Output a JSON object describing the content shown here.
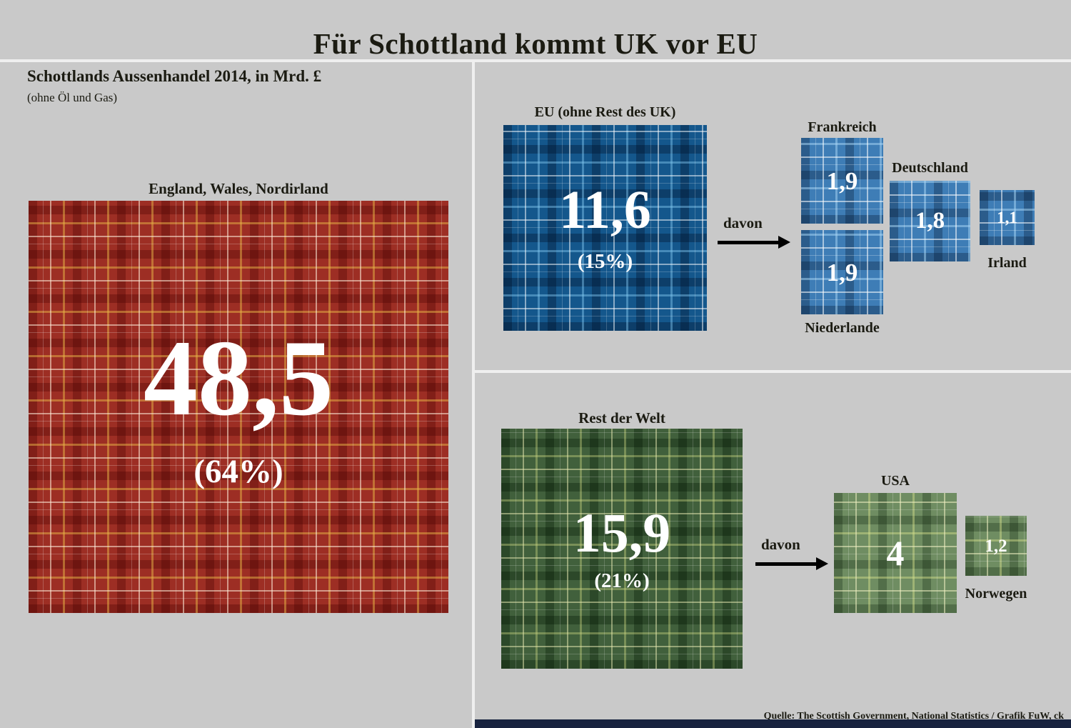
{
  "title": "Für Schottland kommt UK vor EU",
  "left": {
    "heading": "Schottlands Aussenhandel 2014, in Mrd. £",
    "note": "(ohne Öl und Gas)"
  },
  "panels": {
    "uk": {
      "label": "England, Wales, Nordirland",
      "value": "48,5",
      "share": "(64%)"
    },
    "eu": {
      "label": "EU (ohne Rest des UK)",
      "value": "11,6",
      "share": "(15%)",
      "davon": "davon",
      "children": [
        {
          "name": "Frankreich",
          "value": "1,9"
        },
        {
          "name": "Niederlande",
          "value": "1,9"
        },
        {
          "name": "Deutschland",
          "value": "1,8"
        },
        {
          "name": "Irland",
          "value": "1,1"
        }
      ]
    },
    "row": {
      "label": "Rest der Welt",
      "value": "15,9",
      "share": "(21%)",
      "davon": "davon",
      "children": [
        {
          "name": "USA",
          "value": "4"
        },
        {
          "name": "Norwegen",
          "value": "1,2"
        }
      ]
    }
  },
  "source": "Quelle: The Scottish Government, National Statistics / Grafik FuW, ck",
  "colors": {
    "background": "#c9c9c9",
    "uk_red": "#9d2e24",
    "eu_blue": "#14578c",
    "eu_blue_light": "#3e7db6",
    "world_green": "#41603c",
    "world_green_light": "#6f8d62",
    "footer_bar": "#18233f"
  },
  "chart_data": {
    "type": "pie",
    "title": "Für Schottland kommt UK vor EU",
    "subtitle": "Schottlands Aussenhandel 2014, in Mrd. £ (ohne Öl und Gas)",
    "unit": "Mrd. £",
    "categories": [
      "England, Wales, Nordirland",
      "EU (ohne Rest des UK)",
      "Rest der Welt"
    ],
    "values": [
      48.5,
      11.6,
      15.9
    ],
    "shares_pct": [
      64,
      15,
      21
    ],
    "breakdown": {
      "EU (ohne Rest des UK)": {
        "Frankreich": 1.9,
        "Niederlande": 1.9,
        "Deutschland": 1.8,
        "Irland": 1.1
      },
      "Rest der Welt": {
        "USA": 4,
        "Norwegen": 1.2
      }
    },
    "layout": "proportional squares with tartan fill, legend none, value labels inside squares",
    "source": "Quelle: The Scottish Government, National Statistics / Grafik FuW, ck"
  }
}
